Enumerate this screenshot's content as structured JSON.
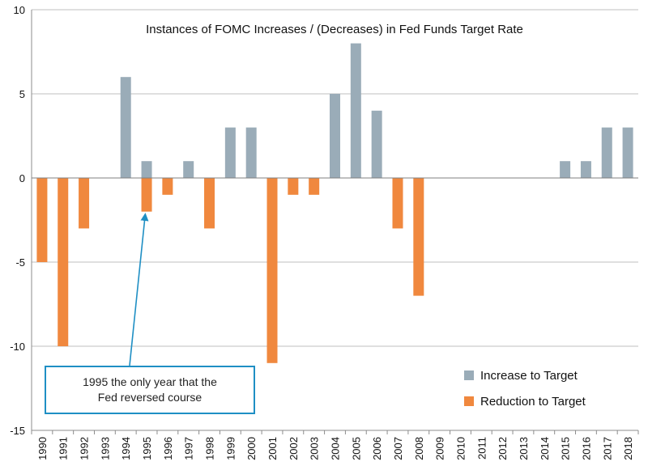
{
  "chart_data": {
    "type": "bar",
    "title": "Instances of FOMC Increases / (Decreases) in Fed Funds Target Rate",
    "xlabel": "",
    "ylabel": "",
    "ylim": [
      -15,
      10
    ],
    "yticks": [
      10,
      5,
      0,
      -5,
      -10,
      -15
    ],
    "grid": true,
    "legend_position": "bottom-right",
    "categories": [
      "1990",
      "1991",
      "1992",
      "1993",
      "1994",
      "1995",
      "1996",
      "1997",
      "1998",
      "1999",
      "2000",
      "2001",
      "2002",
      "2003",
      "2004",
      "2005",
      "2006",
      "2007",
      "2008",
      "2009",
      "2010",
      "2011",
      "2012",
      "2013",
      "2014",
      "2015",
      "2016",
      "2017",
      "2018"
    ],
    "series": [
      {
        "name": "Increase to Target",
        "color": "#9aacb8",
        "values": [
          0,
          0,
          0,
          0,
          6,
          1,
          0,
          1,
          0,
          3,
          3,
          0,
          0,
          0,
          5,
          8,
          4,
          0,
          0,
          0,
          0,
          0,
          0,
          0,
          0,
          1,
          1,
          3,
          3
        ]
      },
      {
        "name": "Reduction to Target",
        "color": "#f0883e",
        "values": [
          -5,
          -10,
          -3,
          0,
          0,
          -2,
          -1,
          0,
          -3,
          0,
          0,
          -11,
          -1,
          -1,
          0,
          0,
          0,
          -3,
          -7,
          0,
          0,
          0,
          0,
          0,
          0,
          0,
          0,
          0,
          0
        ]
      }
    ],
    "annotation": {
      "text": "1995 the only year that the Fed reversed course",
      "points_to": "1995",
      "border_color": "#1f8fc4"
    }
  }
}
